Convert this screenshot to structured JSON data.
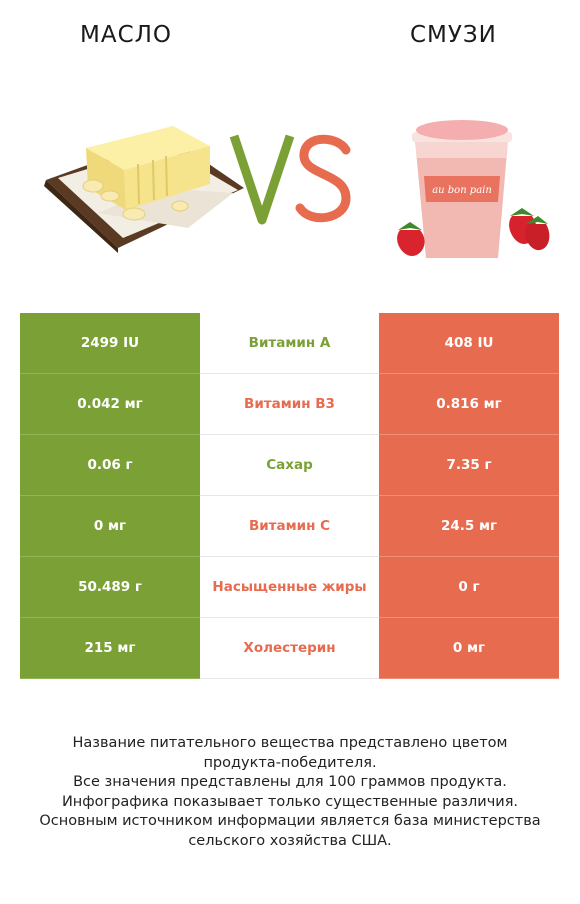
{
  "header": {
    "left_title": "МАСЛО",
    "right_title": "СМУЗИ",
    "vs_text": "VS",
    "smoothie_cup_brand": "au bon pain"
  },
  "colors": {
    "left_winner": "#7ba136",
    "right_winner": "#e76b4f"
  },
  "rows": [
    {
      "left": "2499 IU",
      "name": "Витамин А",
      "right": "408 IU",
      "winner": "left"
    },
    {
      "left": "0.042 мг",
      "name": "Витамин B3",
      "right": "0.816 мг",
      "winner": "right"
    },
    {
      "left": "0.06 г",
      "name": "Сахар",
      "right": "7.35 г",
      "winner": "left"
    },
    {
      "left": "0 мг",
      "name": "Витамин C",
      "right": "24.5 мг",
      "winner": "right"
    },
    {
      "left": "50.489 г",
      "name": "Насыщенные жиры",
      "right": "0 г",
      "winner": "right"
    },
    {
      "left": "215 мг",
      "name": "Холестерин",
      "right": "0 мг",
      "winner": "right"
    }
  ],
  "footnote": [
    "Название питательного вещества представлено цветом",
    "продукта-победителя.",
    "Все значения представлены для 100 граммов продукта.",
    "Инфографика показывает только существенные различия.",
    "Основным источником информации является база министерства",
    "сельского хозяйства США."
  ]
}
